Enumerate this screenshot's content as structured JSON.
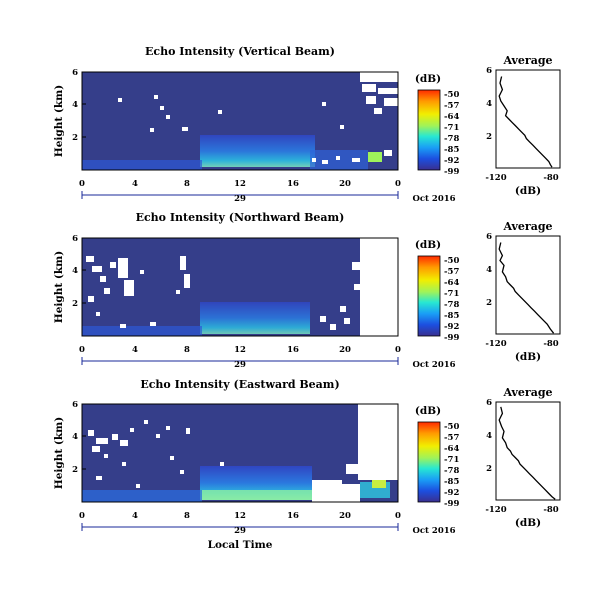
{
  "chart_data": [
    {
      "type": "heatmap",
      "title": "Echo Intensity (Vertical Beam)",
      "ylabel": "Height (km)",
      "xticks": [
        "0",
        "4",
        "8",
        "12",
        "16",
        "20",
        "0"
      ],
      "date_tick": "29",
      "date_label": "Oct 2016",
      "xlim_hours": [
        0,
        24
      ],
      "ylim_km": [
        0,
        6
      ],
      "yticks": [
        "2",
        "4",
        "6"
      ],
      "colorbar": {
        "label": "(dB)",
        "ticks": [
          "-50",
          "-57",
          "-64",
          "-71",
          "-78",
          "-85",
          "-92",
          "-99"
        ],
        "range": [
          -99,
          -50
        ]
      },
      "profile": {
        "title": "Average",
        "xlabel": "(dB)",
        "xticks": [
          "-120",
          "-80"
        ],
        "yticks": [
          "2",
          "4",
          "6"
        ],
        "xlim": [
          -120,
          -80
        ],
        "ylim": [
          0,
          6
        ],
        "x": [
          -116.5,
          -117.5,
          -116,
          -118,
          -117,
          -115,
          -113,
          -114,
          -112,
          -110,
          -108,
          -106,
          -104,
          -102,
          -101,
          -99,
          -97,
          -95,
          -93,
          -91,
          -89,
          -87,
          -86,
          -85
        ],
        "y": [
          5.6,
          5.2,
          4.8,
          4.4,
          4.1,
          3.8,
          3.5,
          3.2,
          3.0,
          2.8,
          2.6,
          2.4,
          2.2,
          2.0,
          1.8,
          1.6,
          1.4,
          1.2,
          1.0,
          0.8,
          0.6,
          0.4,
          0.2,
          0.05
        ]
      }
    },
    {
      "type": "heatmap",
      "title": "Echo Intensity (Northward Beam)",
      "ylabel": "Height (km)",
      "xticks": [
        "0",
        "4",
        "8",
        "12",
        "16",
        "20",
        "0"
      ],
      "date_tick": "29",
      "date_label": "Oct 2016",
      "xlim_hours": [
        0,
        24
      ],
      "ylim_km": [
        0,
        6
      ],
      "yticks": [
        "2",
        "4",
        "6"
      ],
      "colorbar": {
        "label": "(dB)",
        "ticks": [
          "-50",
          "-57",
          "-64",
          "-71",
          "-78",
          "-85",
          "-92",
          "-99"
        ],
        "range": [
          -99,
          -50
        ]
      },
      "profile": {
        "title": "Average",
        "xlabel": "(dB)",
        "xticks": [
          "-120",
          "-80"
        ],
        "yticks": [
          "2",
          "4",
          "6"
        ],
        "xlim": [
          -120,
          -80
        ],
        "ylim": [
          0,
          6
        ],
        "x": [
          -117,
          -118,
          -116,
          -117.5,
          -115,
          -116,
          -114,
          -113,
          -111,
          -109,
          -108,
          -106,
          -104,
          -102,
          -100,
          -98,
          -96,
          -94,
          -92,
          -90,
          -88,
          -86,
          -84
        ],
        "y": [
          5.6,
          5.2,
          4.8,
          4.5,
          4.2,
          3.8,
          3.5,
          3.2,
          3.0,
          2.8,
          2.6,
          2.4,
          2.2,
          2.0,
          1.8,
          1.6,
          1.4,
          1.2,
          1.0,
          0.8,
          0.6,
          0.3,
          0.05
        ]
      }
    },
    {
      "type": "heatmap",
      "title": "Echo Intensity (Eastward Beam)",
      "ylabel": "Height (km)",
      "xticks": [
        "0",
        "4",
        "8",
        "12",
        "16",
        "20",
        "0"
      ],
      "date_tick": "29",
      "date_label": "Oct 2016",
      "xlabel": "Local Time",
      "xlim_hours": [
        0,
        24
      ],
      "ylim_km": [
        0,
        6
      ],
      "yticks": [
        "2",
        "4",
        "6"
      ],
      "colorbar": {
        "label": "(dB)",
        "ticks": [
          "-50",
          "-57",
          "-64",
          "-71",
          "-78",
          "-85",
          "-92",
          "-99"
        ],
        "range": [
          -99,
          -50
        ]
      },
      "profile": {
        "title": "Average",
        "xlabel": "(dB)",
        "xticks": [
          "-120",
          "-80"
        ],
        "yticks": [
          "2",
          "4",
          "6"
        ],
        "xlim": [
          -120,
          -80
        ],
        "ylim": [
          0,
          6
        ],
        "x": [
          -117,
          -116,
          -118,
          -116.5,
          -115,
          -116,
          -114,
          -113,
          -111,
          -110,
          -108,
          -106,
          -105,
          -103,
          -101,
          -99,
          -97,
          -95,
          -93,
          -91,
          -89,
          -87,
          -85,
          -83
        ],
        "y": [
          5.7,
          5.3,
          4.9,
          4.5,
          4.2,
          3.8,
          3.5,
          3.2,
          3.0,
          2.8,
          2.6,
          2.4,
          2.2,
          2.0,
          1.8,
          1.6,
          1.4,
          1.2,
          1.0,
          0.8,
          0.6,
          0.4,
          0.2,
          0.05
        ]
      }
    }
  ],
  "colors": {
    "background_echo": "#353e8a",
    "gradient": [
      "#ff2a00",
      "#ff9a00",
      "#f2ee00",
      "#9ff35a",
      "#27e8d2",
      "#1a9ef6",
      "#1c4fe0",
      "#3a2f8f"
    ],
    "missing": "#ffffff"
  }
}
